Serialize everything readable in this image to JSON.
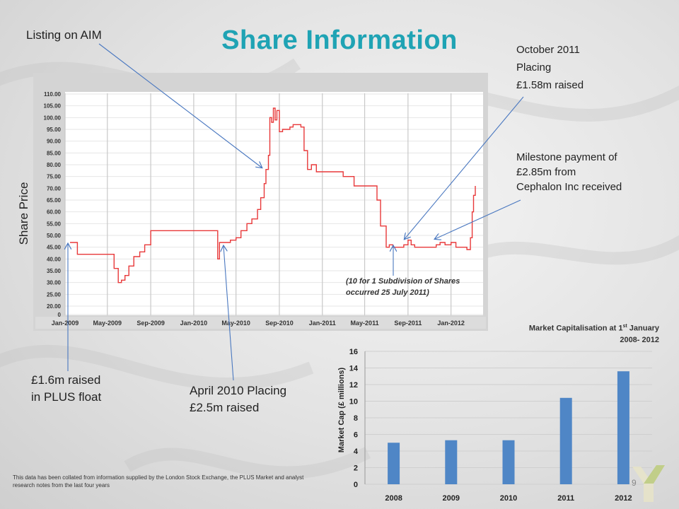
{
  "title": "Share Information",
  "annotations": {
    "listing": "Listing on AIM",
    "october_line1": "October 2011",
    "october_line2": "Placing",
    "october_line3": "£1.58m raised",
    "milestone_line1": "Milestone payment of",
    "milestone_line2": "£2.85m from",
    "milestone_line3": "Cephalon Inc received",
    "plus_line1": "£1.6m raised",
    "plus_line2": "in PLUS float",
    "april_line1": "April 2010 Placing",
    "april_line2": "£2.5m raised",
    "subdivision_line1": "(10 for 1 Subdivision of Shares",
    "subdivision_line2": "occurred 25 July 2011)"
  },
  "footer_text": "This data has been collated from information supplied by the London Stock Exchange, the PLUS Market and analyst research notes from the last four years",
  "page_number": "9",
  "colors": {
    "title": "#1fa3b4",
    "price_line": "#e8393a",
    "bar": "#4f86c6",
    "arrow": "#4a78c0"
  },
  "chart_data": [
    {
      "type": "line",
      "ylabel": "Share Price",
      "ylim": [
        0,
        110
      ],
      "y_ticks": [
        "0",
        "20.00",
        "25.00",
        "30.00",
        "35.00",
        "40.00",
        "45.00",
        "50.00",
        "55.00",
        "60.00",
        "65.00",
        "70.00",
        "75.00",
        "80.00",
        "85.00",
        "90.00",
        "95.00",
        "100.00",
        "105.00",
        "110.00"
      ],
      "x_ticks": [
        "Jan-2009",
        "May-2009",
        "Sep-2009",
        "Jan-2010",
        "May-2010",
        "Sep-2010",
        "Jan-2011",
        "May-2011",
        "Sep-2011",
        "Jan-2012"
      ],
      "grid": true,
      "series": [
        {
          "x": [
            "2009-01-15",
            "2009-02-01",
            "2009-02-05",
            "2009-03-01",
            "2009-04-01",
            "2009-05-01",
            "2009-05-20",
            "2009-06-01",
            "2009-06-10",
            "2009-06-20",
            "2009-07-01",
            "2009-07-15",
            "2009-08-01",
            "2009-08-15",
            "2009-09-01",
            "2009-09-15",
            "2009-10-01",
            "2009-11-01",
            "2009-12-01",
            "2010-01-01",
            "2010-02-01",
            "2010-03-01",
            "2010-03-10",
            "2010-03-15",
            "2010-03-20",
            "2010-04-01",
            "2010-04-15",
            "2010-05-01",
            "2010-05-15",
            "2010-06-01",
            "2010-06-15",
            "2010-07-01",
            "2010-07-10",
            "2010-07-20",
            "2010-07-25",
            "2010-08-01",
            "2010-08-05",
            "2010-08-10",
            "2010-08-15",
            "2010-08-20",
            "2010-08-25",
            "2010-09-01",
            "2010-09-10",
            "2010-09-20",
            "2010-10-01",
            "2010-10-10",
            "2010-10-20",
            "2010-11-01",
            "2010-11-10",
            "2010-11-20",
            "2010-12-01",
            "2010-12-15",
            "2011-01-01",
            "2011-02-01",
            "2011-03-01",
            "2011-04-01",
            "2011-05-01",
            "2011-06-01",
            "2011-06-05",
            "2011-06-15",
            "2011-07-01",
            "2011-07-10",
            "2011-07-20",
            "2011-08-01",
            "2011-08-15",
            "2011-08-20",
            "2011-09-01",
            "2011-09-10",
            "2011-09-20",
            "2011-10-01",
            "2011-10-15",
            "2011-11-01",
            "2011-11-20",
            "2011-12-01",
            "2011-12-15",
            "2012-01-01",
            "2012-01-15",
            "2012-02-01",
            "2012-02-15",
            "2012-02-25",
            "2012-03-01",
            "2012-03-05",
            "2012-03-10"
          ],
          "values": [
            47,
            47,
            42,
            42,
            42,
            42,
            36,
            30,
            31,
            33,
            37,
            41,
            43,
            46,
            52,
            52,
            52,
            52,
            52,
            52,
            52,
            52,
            40,
            47,
            47,
            47,
            48,
            49,
            52,
            55,
            57,
            61,
            66,
            72,
            78,
            84,
            100,
            98,
            104,
            99,
            103,
            94,
            95,
            95,
            96,
            97,
            97,
            96,
            86,
            78,
            80,
            77,
            77,
            77,
            75,
            71,
            71,
            71,
            65,
            54,
            45,
            46,
            45,
            45,
            45,
            46,
            48,
            46,
            45,
            45,
            45,
            45,
            46,
            47,
            46,
            47,
            45,
            45,
            44,
            49,
            60,
            67,
            71
          ]
        }
      ]
    },
    {
      "type": "bar",
      "title": "Market Capitalisation at 1st January 2008- 2012",
      "title_line1": "Market Capitalisation at 1",
      "title_sup": "st",
      "title_line1_end": " January",
      "title_line2": "2008- 2012",
      "ylabel": "Market Cap (£ millions)",
      "categories": [
        "2008",
        "2009",
        "2010",
        "2011",
        "2012"
      ],
      "values": [
        5.0,
        5.3,
        5.3,
        10.4,
        13.6
      ],
      "ylim": [
        0,
        16
      ],
      "y_ticks": [
        "0",
        "2",
        "4",
        "6",
        "8",
        "10",
        "12",
        "14",
        "16"
      ],
      "grid": true
    }
  ]
}
